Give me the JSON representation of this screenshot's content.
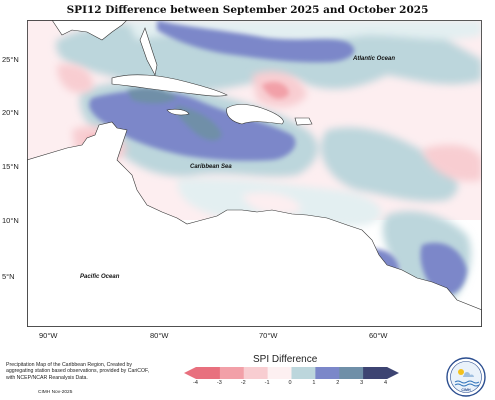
{
  "title": "SPI12 Difference between September 2025 and October 2025",
  "lat_labels": [
    "25°N",
    "20°N",
    "15°N",
    "10°N",
    "5°N"
  ],
  "lon_labels": [
    "90°W",
    "80°W",
    "70°W",
    "60°W"
  ],
  "map_labels": {
    "atlantic": "Atlantic Ocean",
    "caribbean": "Caribbean Sea",
    "pacific": "Pacific Ocean"
  },
  "caption": "Precipitation Map of the Caribbean Region, Created by aggregating station based observations, provided by CariCOF, with NCEP/NCAR Reanalysis Data.",
  "credit": "CIMH Nov-2025",
  "legend": {
    "title": "SPI Difference",
    "ticks": [
      "-4",
      "-3",
      "-2",
      "-1",
      "0",
      "1",
      "2",
      "3",
      "4"
    ],
    "colors": [
      "#e8707e",
      "#f2a0a8",
      "#f8cdd1",
      "#fdf0f1",
      "#e3eff1",
      "#bcd6dc",
      "#7b87c9",
      "#6f8fa8",
      "#3d4472"
    ]
  },
  "logo_text": "CIMH"
}
